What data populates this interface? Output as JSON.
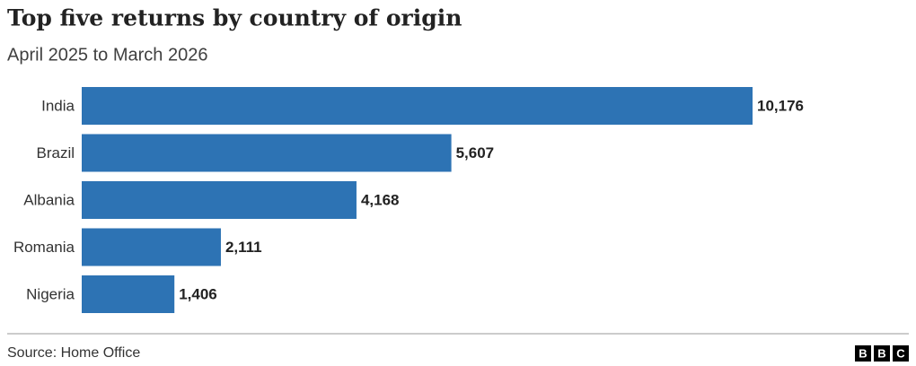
{
  "chart_data": {
    "type": "bar",
    "orientation": "horizontal",
    "title": "Top five returns by country of origin",
    "subtitle": "April 2025 to March 2026",
    "categories": [
      "India",
      "Brazil",
      "Albania",
      "Romania",
      "Nigeria"
    ],
    "values": [
      10176,
      5607,
      4168,
      2111,
      1406
    ],
    "value_labels": [
      "10,176",
      "5,607",
      "4,168",
      "2,111",
      "1,406"
    ],
    "color": "#2d73b4",
    "source": "Source: Home Office",
    "logo": [
      "B",
      "B",
      "C"
    ]
  }
}
